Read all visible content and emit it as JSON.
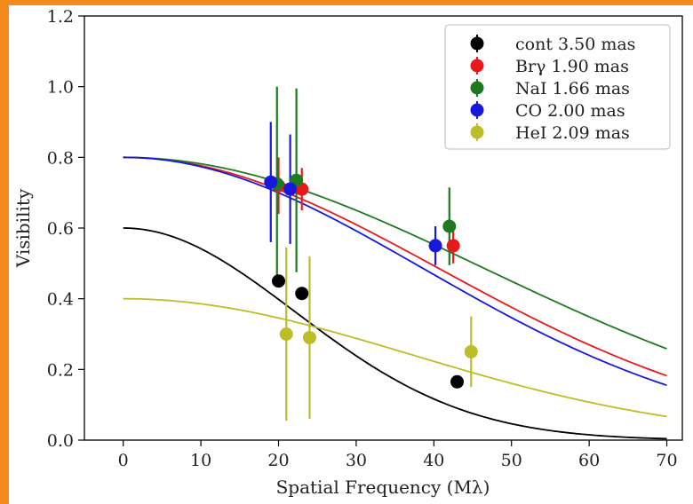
{
  "chart_data": {
    "type": "scatter",
    "xlabel": "Spatial Frequency (Mλ)",
    "ylabel": "Visibility",
    "xlim": [
      -5,
      72
    ],
    "ylim": [
      0.0,
      1.2
    ],
    "xticks": [
      0,
      10,
      20,
      30,
      40,
      50,
      60,
      70
    ],
    "yticks": [
      0.0,
      0.2,
      0.4,
      0.6,
      0.8,
      1.0,
      1.2
    ],
    "xtick_labels": [
      "0",
      "10",
      "20",
      "30",
      "40",
      "50",
      "60",
      "70"
    ],
    "ytick_labels": [
      "0.0",
      "0.2",
      "0.4",
      "0.6",
      "0.8",
      "1.0",
      "1.2"
    ],
    "grid": false,
    "legend_position": "top-right",
    "series": [
      {
        "name": "cont 3.50 mas",
        "color": "#000000",
        "model": {
          "amplitude": 0.6,
          "fwhm_mas": 3.5
        },
        "points": [
          {
            "x": 20.0,
            "y": 0.45,
            "err": 0.0
          },
          {
            "x": 23.0,
            "y": 0.415,
            "err": 0.0
          },
          {
            "x": 43.0,
            "y": 0.165,
            "err": 0.0
          }
        ]
      },
      {
        "name": "Brγ 1.90 mas",
        "color": "#e8191b",
        "model": {
          "amplitude": 0.8,
          "fwhm_mas": 1.9
        },
        "points": [
          {
            "x": 20.0,
            "y": 0.72,
            "err": 0.08
          },
          {
            "x": 23.0,
            "y": 0.71,
            "err": 0.06
          },
          {
            "x": 42.5,
            "y": 0.55,
            "err": 0.05
          }
        ]
      },
      {
        "name": "NaI 1.66 mas",
        "color": "#1f7a1f",
        "model": {
          "amplitude": 0.8,
          "fwhm_mas": 1.66
        },
        "points": [
          {
            "x": 19.8,
            "y": 0.725,
            "err": 0.275
          },
          {
            "x": 22.3,
            "y": 0.735,
            "err": 0.26
          },
          {
            "x": 42.0,
            "y": 0.605,
            "err": 0.11
          }
        ]
      },
      {
        "name": "CO 2.00 mas",
        "color": "#1717e0",
        "model": {
          "amplitude": 0.8,
          "fwhm_mas": 2.0
        },
        "points": [
          {
            "x": 19.0,
            "y": 0.73,
            "err": 0.17
          },
          {
            "x": 21.5,
            "y": 0.71,
            "err": 0.155
          },
          {
            "x": 40.2,
            "y": 0.55,
            "err": 0.055
          }
        ]
      },
      {
        "name": "HeI 2.09 mas",
        "color": "#bdbd2a",
        "model": {
          "amplitude": 0.4,
          "fwhm_mas": 2.09
        },
        "points": [
          {
            "x": 21.0,
            "y": 0.3,
            "err": 0.245
          },
          {
            "x": 24.0,
            "y": 0.29,
            "err": 0.23
          },
          {
            "x": 44.8,
            "y": 0.25,
            "err": 0.1
          }
        ]
      }
    ]
  }
}
